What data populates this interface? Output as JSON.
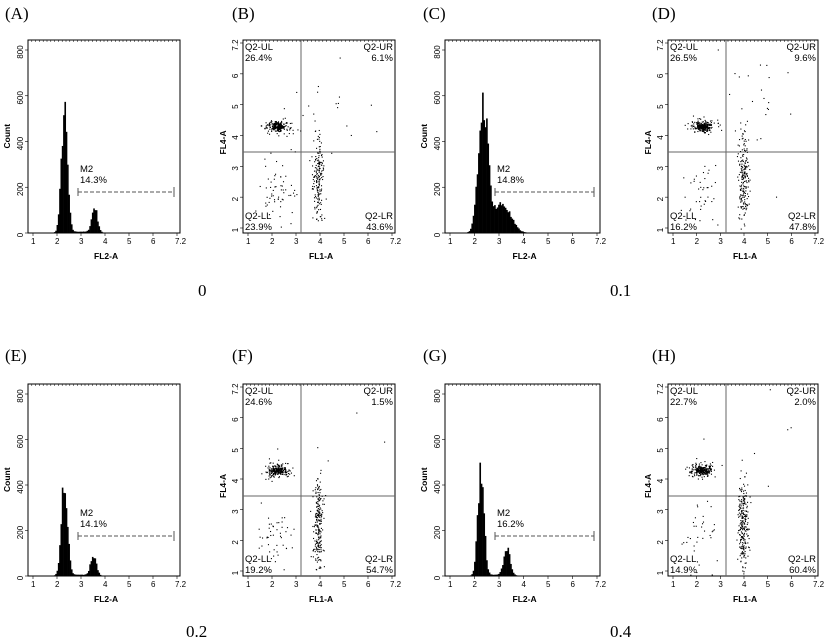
{
  "panels": [
    {
      "id": "A",
      "label": "(A)",
      "type": "histogram",
      "dose": "0",
      "marker": "M2",
      "marker_pct": "14.3%",
      "xlabel": "FL2-A",
      "ylabel": "Count",
      "peaks": [
        {
          "x": 2.35,
          "h": 520,
          "w": 0.13
        },
        {
          "x": 3.65,
          "h": 110,
          "w": 0.12
        }
      ],
      "yticks": [
        "0",
        "200",
        "400",
        "600",
        "800"
      ],
      "xticks": [
        "1",
        "2",
        "3",
        "4",
        "5",
        "6",
        "7.2"
      ]
    },
    {
      "id": "B",
      "label": "(B)",
      "type": "scatter",
      "xlabel": "FL1-A",
      "ylabel": "FL4-A",
      "quadrants": {
        "ul": {
          "name": "Q2-UL",
          "pct": "26.4%"
        },
        "ur": {
          "name": "Q2-UR",
          "pct": "6.1%"
        },
        "ll": {
          "name": "Q2-LL",
          "pct": "23.9%"
        },
        "lr": {
          "name": "Q2-LR",
          "pct": "43.6%"
        }
      },
      "yticks": [
        "1",
        "2",
        "3",
        "4",
        "5",
        "6",
        "7.2"
      ],
      "xticks": [
        "1",
        "2",
        "3",
        "4",
        "5",
        "6",
        "7.2"
      ]
    },
    {
      "id": "C",
      "label": "(C)",
      "type": "histogram",
      "dose": "0.1",
      "marker": "M2",
      "marker_pct": "14.8%",
      "xlabel": "FL2-A",
      "ylabel": "Count",
      "peaks": [
        {
          "x": 2.4,
          "h": 560,
          "w": 0.2
        },
        {
          "x": 3.2,
          "h": 120,
          "w": 0.35
        }
      ],
      "yticks": [
        "0",
        "200",
        "400",
        "600",
        "800"
      ],
      "xticks": [
        "1",
        "2",
        "3",
        "4",
        "5",
        "6",
        "7.2"
      ]
    },
    {
      "id": "D",
      "label": "(D)",
      "type": "scatter",
      "xlabel": "FL1-A",
      "ylabel": "FL4-A",
      "quadrants": {
        "ul": {
          "name": "Q2-UL",
          "pct": "26.5%"
        },
        "ur": {
          "name": "Q2-UR",
          "pct": "9.6%"
        },
        "ll": {
          "name": "Q2-LL",
          "pct": "16.2%"
        },
        "lr": {
          "name": "Q2-LR",
          "pct": "47.8%"
        }
      },
      "yticks": [
        "1",
        "2",
        "3",
        "4",
        "5",
        "6",
        "7.2"
      ],
      "xticks": [
        "1",
        "2",
        "3",
        "4",
        "5",
        "6",
        "7.2"
      ]
    },
    {
      "id": "E",
      "label": "(E)",
      "type": "histogram",
      "dose": "0.2",
      "marker": "M2",
      "marker_pct": "14.1%",
      "xlabel": "FL2-A",
      "ylabel": "Count",
      "peaks": [
        {
          "x": 2.35,
          "h": 420,
          "w": 0.13
        },
        {
          "x": 3.6,
          "h": 90,
          "w": 0.12
        }
      ],
      "yticks": [
        "0",
        "200",
        "400",
        "600",
        "800"
      ],
      "xticks": [
        "1",
        "2",
        "3",
        "4",
        "5",
        "6",
        "7.2"
      ]
    },
    {
      "id": "F",
      "label": "(F)",
      "type": "scatter",
      "xlabel": "FL1-A",
      "ylabel": "FL4-A",
      "quadrants": {
        "ul": {
          "name": "Q2-UL",
          "pct": "24.6%"
        },
        "ur": {
          "name": "Q2-UR",
          "pct": "1.5%"
        },
        "ll": {
          "name": "Q2-LL",
          "pct": "19.2%"
        },
        "lr": {
          "name": "Q2-LR",
          "pct": "54.7%"
        }
      },
      "yticks": [
        "1",
        "2",
        "3",
        "4",
        "5",
        "6",
        "7.2"
      ],
      "xticks": [
        "1",
        "2",
        "3",
        "4",
        "5",
        "6",
        "7.2"
      ]
    },
    {
      "id": "G",
      "label": "(G)",
      "type": "histogram",
      "dose": "0.4",
      "marker": "M2",
      "marker_pct": "16.2%",
      "xlabel": "FL2-A",
      "ylabel": "Count",
      "peaks": [
        {
          "x": 2.3,
          "h": 460,
          "w": 0.13
        },
        {
          "x": 3.4,
          "h": 120,
          "w": 0.13
        }
      ],
      "yticks": [
        "0",
        "200",
        "400",
        "600",
        "800"
      ],
      "xticks": [
        "1",
        "2",
        "3",
        "4",
        "5",
        "6",
        "7.2"
      ]
    },
    {
      "id": "H",
      "label": "(H)",
      "type": "scatter",
      "xlabel": "FL1-A",
      "ylabel": "FL4-A",
      "quadrants": {
        "ul": {
          "name": "Q2-UL",
          "pct": "22.7%"
        },
        "ur": {
          "name": "Q2-UR",
          "pct": "2.0%"
        },
        "ll": {
          "name": "Q2-LL",
          "pct": "14.9%"
        },
        "lr": {
          "name": "Q2-LR",
          "pct": "60.4%"
        }
      },
      "yticks": [
        "1",
        "2",
        "3",
        "4",
        "5",
        "6",
        "7.2"
      ],
      "xticks": [
        "1",
        "2",
        "3",
        "4",
        "5",
        "6",
        "7.2"
      ]
    }
  ],
  "chart_data": [
    {
      "type": "histogram",
      "panel": "(A)",
      "xlabel": "FL2-A",
      "ylabel": "Count",
      "ylim": [
        0,
        800
      ],
      "xlim": [
        1,
        7.2
      ],
      "gate": {
        "name": "M2",
        "percent": 14.3
      },
      "peaks": [
        {
          "x": 2.35,
          "count": 520
        },
        {
          "x": 3.65,
          "count": 110
        }
      ]
    },
    {
      "type": "scatter",
      "panel": "(B)",
      "xlabel": "FL1-A",
      "ylabel": "FL4-A",
      "quadrants": {
        "Q2-UL": 26.4,
        "Q2-UR": 6.1,
        "Q2-LL": 23.9,
        "Q2-LR": 43.6
      }
    },
    {
      "type": "histogram",
      "panel": "(C)",
      "xlabel": "FL2-A",
      "ylabel": "Count",
      "ylim": [
        0,
        800
      ],
      "xlim": [
        1,
        7.2
      ],
      "gate": {
        "name": "M2",
        "percent": 14.8
      },
      "peaks": [
        {
          "x": 2.4,
          "count": 560
        },
        {
          "x": 3.2,
          "count": 120
        }
      ]
    },
    {
      "type": "scatter",
      "panel": "(D)",
      "xlabel": "FL1-A",
      "ylabel": "FL4-A",
      "quadrants": {
        "Q2-UL": 26.5,
        "Q2-UR": 9.6,
        "Q2-LL": 16.2,
        "Q2-LR": 47.8
      }
    },
    {
      "type": "histogram",
      "panel": "(E)",
      "xlabel": "FL2-A",
      "ylabel": "Count",
      "ylim": [
        0,
        800
      ],
      "xlim": [
        1,
        7.2
      ],
      "gate": {
        "name": "M2",
        "percent": 14.1
      },
      "peaks": [
        {
          "x": 2.35,
          "count": 420
        },
        {
          "x": 3.6,
          "count": 90
        }
      ]
    },
    {
      "type": "scatter",
      "panel": "(F)",
      "xlabel": "FL1-A",
      "ylabel": "FL4-A",
      "quadrants": {
        "Q2-UL": 24.6,
        "Q2-UR": 1.5,
        "Q2-LL": 19.2,
        "Q2-LR": 54.7
      }
    },
    {
      "type": "histogram",
      "panel": "(G)",
      "xlabel": "FL2-A",
      "ylabel": "Count",
      "ylim": [
        0,
        800
      ],
      "xlim": [
        1,
        7.2
      ],
      "gate": {
        "name": "M2",
        "percent": 16.2
      },
      "peaks": [
        {
          "x": 2.3,
          "count": 460
        },
        {
          "x": 3.4,
          "count": 120
        }
      ]
    },
    {
      "type": "scatter",
      "panel": "(H)",
      "xlabel": "FL1-A",
      "ylabel": "FL4-A",
      "quadrants": {
        "Q2-UL": 22.7,
        "Q2-UR": 2.0,
        "Q2-LL": 14.9,
        "Q2-LR": 60.4
      }
    }
  ]
}
